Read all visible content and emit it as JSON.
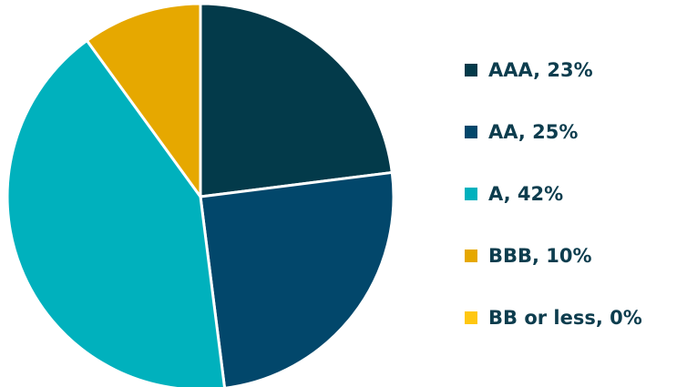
{
  "chart_data": {
    "type": "pie",
    "title": "",
    "legend_position": "right",
    "start_angle_deg": 0,
    "direction": "clockwise",
    "slices": [
      {
        "label": "AAA, 23%",
        "category": "AAA",
        "value": 23,
        "color": "#033a4a"
      },
      {
        "label": "AA, 25%",
        "category": "AA",
        "value": 25,
        "color": "#02476b"
      },
      {
        "label": "A, 42%",
        "category": "A",
        "value": 42,
        "color": "#00b1bd"
      },
      {
        "label": "BBB, 10%",
        "category": "BBB",
        "value": 10,
        "color": "#e6a800"
      },
      {
        "label": "BB or less, 0%",
        "category": "BB or less",
        "value": 0,
        "color": "#ffc711"
      }
    ]
  }
}
